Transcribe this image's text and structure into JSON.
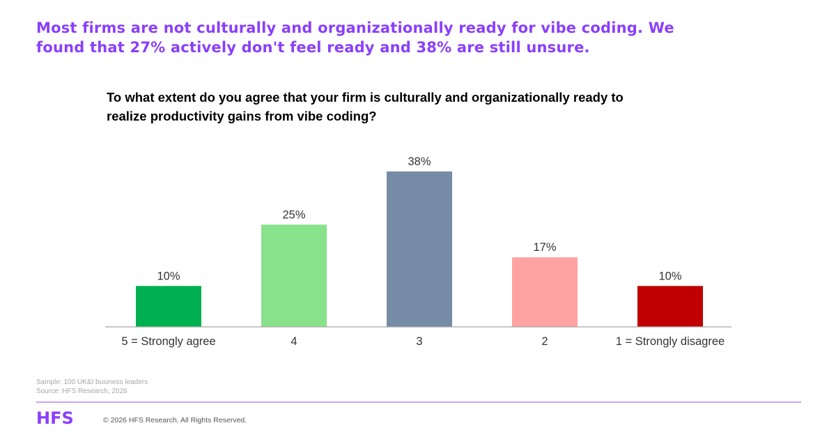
{
  "headline": {
    "line1": "Most firms are not culturally and organizationally ready for vibe coding. We",
    "line2": "found that 27% actively don't feel ready and 38% are still unsure."
  },
  "question": {
    "line1": "To what extent do you agree that your firm is culturally and organizationally ready to",
    "line2": "realize productivity gains from vibe coding?"
  },
  "chart_data": {
    "type": "bar",
    "categories": [
      "5 = Strongly agree",
      "4",
      "3",
      "2",
      "1 = Strongly disagree"
    ],
    "values": [
      10,
      25,
      38,
      17,
      10
    ],
    "value_labels": [
      "10%",
      "25%",
      "38%",
      "17%",
      "10%"
    ],
    "colors": [
      "#00b050",
      "#88e28b",
      "#768ba6",
      "#ffa2a2",
      "#c00000"
    ],
    "ylim": [
      0,
      38
    ],
    "grid": false,
    "legend": "none"
  },
  "notes": {
    "sample": "Sample: 100 UK&I business leaders",
    "source": "Source: HFS Research, 2026"
  },
  "footer": {
    "logo": "HFS",
    "copyright": "© 2026 HFS Research. All Rights Reserved."
  }
}
